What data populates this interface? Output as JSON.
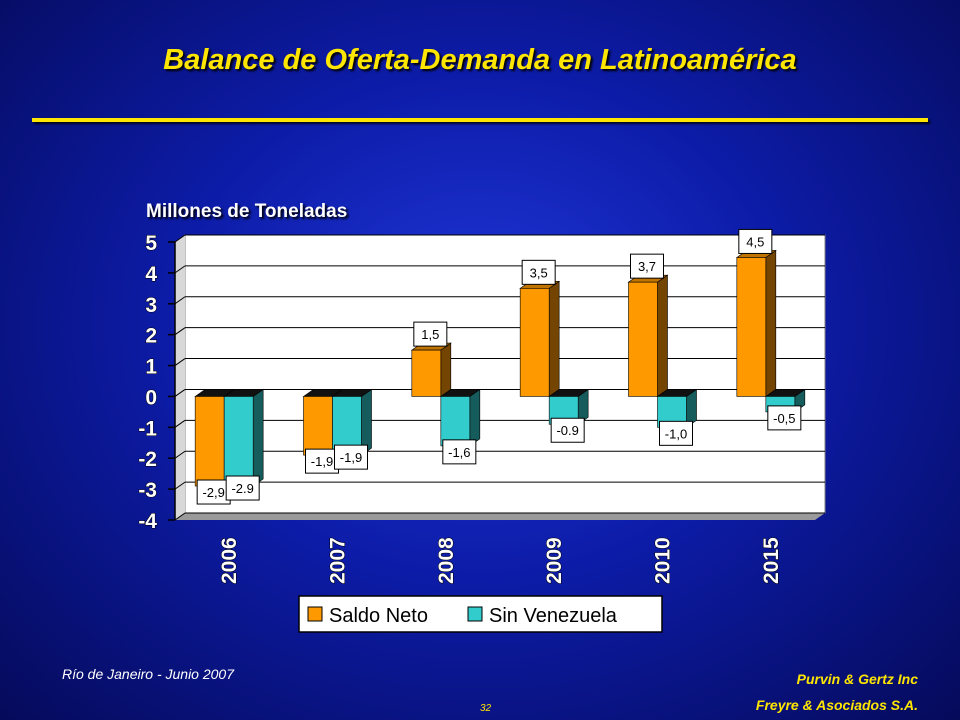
{
  "slide": {
    "title": "Balance de Oferta-Demanda en Latinoamérica",
    "footer_left": "Río de Janeiro - Junio 2007",
    "footer_right_1": "Purvin & Gertz Inc",
    "footer_right_2": "Freyre & Asociados S.A.",
    "page_number": "32"
  },
  "chart_data": {
    "type": "bar",
    "ylabel": "Millones de Toneladas",
    "categories": [
      "2006",
      "2007",
      "2008",
      "2009",
      "2010",
      "2015"
    ],
    "series": [
      {
        "name": "Saldo Neto",
        "color": "#ff9900",
        "values": [
          -2.9,
          -1.9,
          1.5,
          3.5,
          3.7,
          4.5
        ],
        "labels": [
          "-2,9",
          "-1,9",
          "1,5",
          "3,5",
          "3,7",
          "4,5"
        ]
      },
      {
        "name": "Sin Venezuela",
        "color": "#33cccc",
        "values": [
          -2.9,
          -1.9,
          -1.6,
          -0.9,
          -1.0,
          -0.5
        ],
        "labels": [
          "-2.9",
          "-1,9",
          "-1,6",
          "-0.9",
          "-1,0",
          "-0,5"
        ]
      }
    ],
    "yticks": [
      "5",
      "4",
      "3",
      "2",
      "1",
      "0",
      "-1",
      "-2",
      "-3",
      "-4"
    ],
    "ylim": [
      -4,
      5
    ],
    "grid": true,
    "legend_position": "bottom"
  }
}
